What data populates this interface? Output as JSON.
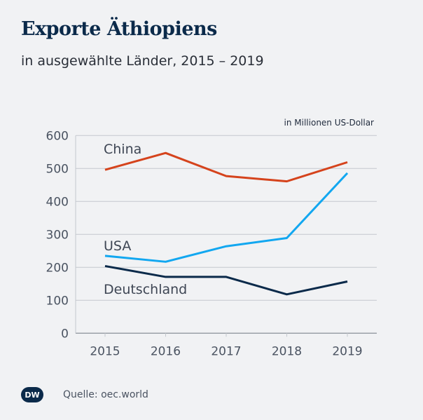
{
  "header": {
    "title": "Exporte Äthiopiens",
    "subtitle": "in ausgewählte Länder, 2015 – 2019"
  },
  "footer": {
    "source": "Quelle: oec.world",
    "logo_text": "DW"
  },
  "chart_data": {
    "type": "line",
    "title": "Exporte Äthiopiens",
    "subtitle": "in ausgewählte Länder, 2015 – 2019",
    "unit_label": "in Millionen US-Dollar",
    "x": [
      "2015",
      "2016",
      "2017",
      "2018",
      "2019"
    ],
    "ylim": [
      0,
      600
    ],
    "yticks": [
      "0",
      "100",
      "200",
      "300",
      "400",
      "500",
      "600"
    ],
    "grid": true,
    "series": [
      {
        "name": "China",
        "color": "#d5431c",
        "values": [
          496,
          547,
          477,
          461,
          519
        ]
      },
      {
        "name": "USA",
        "color": "#12a7f0",
        "values": [
          235,
          217,
          264,
          289,
          486
        ]
      },
      {
        "name": "Deutschland",
        "color": "#0b2a4a",
        "values": [
          204,
          171,
          171,
          118,
          157
        ]
      }
    ]
  }
}
